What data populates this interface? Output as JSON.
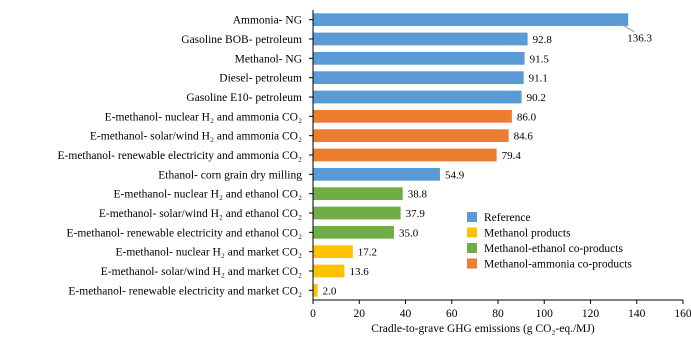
{
  "chart_data": {
    "type": "bar",
    "orientation": "horizontal",
    "categories": [
      "Ammonia- NG",
      "Gasoline BOB- petroleum",
      "Methanol- NG",
      "Diesel- petroleum",
      "Gasoline E10- petroleum",
      "E-methanol- nuclear H₂ and ammonia CO₂",
      "E-methanol- solar/wind H₂ and ammonia CO₂",
      "E-methanol- renewable electricity and ammonia CO₂",
      "Ethanol- corn grain dry milling",
      "E-methanol- nuclear H₂ and ethanol CO₂",
      "E-methanol- solar/wind H₂ and ethanol CO₂",
      "E-methanol- renewable electricity and ethanol CO₂",
      "E-methanol- nuclear H₂ and market CO₂",
      "E-methanol- solar/wind H₂ and market CO₂",
      "E-methanol- renewable electricity and market CO₂"
    ],
    "values": [
      136.3,
      92.8,
      91.5,
      91.1,
      90.2,
      86.0,
      84.6,
      79.4,
      54.9,
      38.8,
      37.9,
      35.0,
      17.2,
      13.6,
      2.0
    ],
    "value_labels": [
      "136.3",
      "92.8",
      "91.5",
      "91.1",
      "90.2",
      "86.0",
      "84.6",
      "79.4",
      "54.9",
      "38.8",
      "37.9",
      "35.0",
      "17.2",
      "13.6",
      "2.0"
    ],
    "groups": [
      "reference",
      "reference",
      "reference",
      "reference",
      "reference",
      "ammonia",
      "ammonia",
      "ammonia",
      "reference",
      "ethanol",
      "ethanol",
      "ethanol",
      "methanol",
      "methanol",
      "methanol"
    ],
    "legend": [
      {
        "key": "reference",
        "label": "Reference",
        "color": "#5b9bd5"
      },
      {
        "key": "methanol",
        "label": "Methanol products",
        "color": "#ffc000"
      },
      {
        "key": "ethanol",
        "label": "Methanol-ethanol co-products",
        "color": "#70ad47"
      },
      {
        "key": "ammonia",
        "label": "Methanol-ammonia co-products",
        "color": "#ed7d31"
      }
    ],
    "legend_position": "bottom-right",
    "xlabel": "Cradle-to-grave GHG emissions (g CO₂-eq./MJ)",
    "ylabel": "",
    "title": "",
    "xlim": [
      0,
      160
    ],
    "xticks": [
      0,
      20,
      40,
      60,
      80,
      100,
      120,
      140,
      160
    ],
    "grid": false
  }
}
